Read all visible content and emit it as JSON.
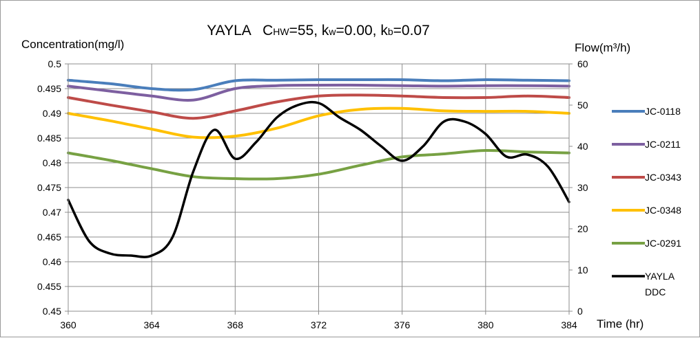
{
  "chart_data": {
    "type": "line",
    "title_parts": [
      {
        "text": "YAYLA   C",
        "size": "normal"
      },
      {
        "text": "HW",
        "size": "small"
      },
      {
        "text": "=55, k",
        "size": "normal"
      },
      {
        "text": "w",
        "size": "small"
      },
      {
        "text": "=0.00, k",
        "size": "normal"
      },
      {
        "text": "b",
        "size": "small"
      },
      {
        "text": "=0.07",
        "size": "normal"
      }
    ],
    "ylabel_left": "Concentration(mg/l)",
    "ylabel_right": "Flow(m³/h)",
    "xlabel": "Time (hr)",
    "xlim": [
      360,
      384
    ],
    "xticks": [
      360,
      364,
      368,
      372,
      376,
      380,
      384
    ],
    "ylim_left": [
      0.45,
      0.5
    ],
    "yticks_left": [
      "0.45",
      "0.455",
      "0.46",
      "0.465",
      "0.47",
      "0.475",
      "0.48",
      "0.485",
      "0.49",
      "0.495",
      "0.5"
    ],
    "ylim_right": [
      0,
      60
    ],
    "yticks_right": [
      "0",
      "10",
      "20",
      "30",
      "40",
      "50",
      "60"
    ],
    "grid": true,
    "legend_position": "right",
    "series": [
      {
        "name": "JC-0118",
        "axis": "left",
        "color": "#4a7ebb",
        "x": [
          360,
          362,
          364,
          366,
          368,
          370,
          372,
          374,
          376,
          378,
          380,
          382,
          384
        ],
        "y": [
          0.4967,
          0.496,
          0.495,
          0.4948,
          0.4966,
          0.4967,
          0.4968,
          0.4968,
          0.4968,
          0.4966,
          0.4968,
          0.4967,
          0.4966
        ]
      },
      {
        "name": "JC-0211",
        "axis": "left",
        "color": "#7d5fa0",
        "x": [
          360,
          362,
          364,
          366,
          368,
          370,
          372,
          374,
          376,
          378,
          380,
          382,
          384
        ],
        "y": [
          0.4955,
          0.4945,
          0.4935,
          0.4927,
          0.495,
          0.4956,
          0.4957,
          0.4957,
          0.4956,
          0.4955,
          0.4956,
          0.4956,
          0.4955
        ]
      },
      {
        "name": "JC-0343",
        "axis": "left",
        "color": "#be4b48",
        "x": [
          360,
          362,
          364,
          366,
          368,
          370,
          372,
          374,
          376,
          378,
          380,
          382,
          384
        ],
        "y": [
          0.4932,
          0.4917,
          0.4903,
          0.489,
          0.4905,
          0.4923,
          0.4935,
          0.4937,
          0.4935,
          0.4932,
          0.4932,
          0.4935,
          0.4932
        ]
      },
      {
        "name": "JC-0348",
        "axis": "left",
        "color": "#ffc000",
        "x": [
          360,
          362,
          364,
          366,
          368,
          370,
          372,
          374,
          376,
          378,
          380,
          382,
          384
        ],
        "y": [
          0.49,
          0.4885,
          0.4868,
          0.4852,
          0.4854,
          0.487,
          0.4895,
          0.4908,
          0.491,
          0.4905,
          0.4904,
          0.4904,
          0.49
        ]
      },
      {
        "name": "JC-0291",
        "axis": "left",
        "color": "#77a143",
        "x": [
          360,
          362,
          364,
          366,
          368,
          370,
          372,
          374,
          376,
          378,
          380,
          382,
          384
        ],
        "y": [
          0.482,
          0.4805,
          0.4788,
          0.4772,
          0.4768,
          0.4768,
          0.4777,
          0.4795,
          0.4812,
          0.4818,
          0.4825,
          0.4822,
          0.482
        ]
      },
      {
        "name_lines": [
          "YAYLA",
          "DDC"
        ],
        "axis": "right",
        "color": "#000000",
        "x": [
          360,
          361,
          362,
          363,
          364,
          365,
          366,
          367,
          368,
          369,
          370,
          371,
          372,
          373,
          374,
          375,
          376,
          377,
          378,
          379,
          380,
          381,
          382,
          383,
          384
        ],
        "y": [
          27,
          17,
          14,
          13.5,
          13.5,
          18,
          34,
          44,
          37,
          41,
          47,
          50,
          50.5,
          47,
          44,
          40,
          36.5,
          40,
          46,
          46,
          43,
          37.5,
          38,
          35,
          26.5
        ]
      }
    ]
  }
}
